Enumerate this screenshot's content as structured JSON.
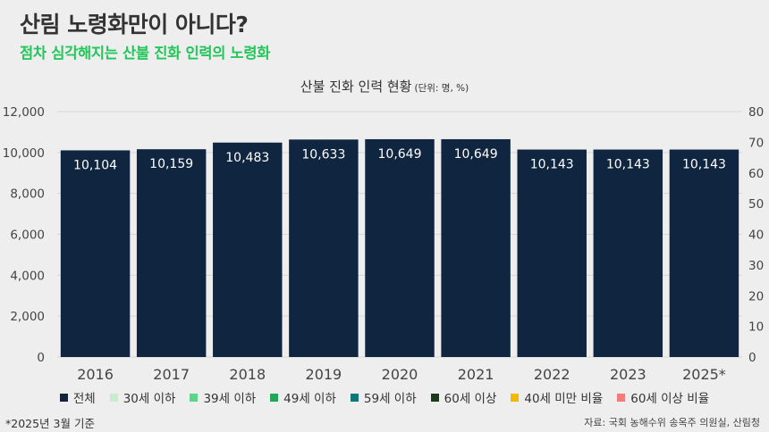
{
  "header": {
    "title": "산림 노령화만이 아니다?",
    "subtitle": "점차 심각해지는 산불 진화 인력의 노령화"
  },
  "colors": {
    "bar": "#0f2540",
    "subtitle_accent": "#22c65a"
  },
  "chart_data": {
    "type": "bar",
    "title": "산불 진화 인력 현황",
    "unit_note": "(단위: 명, %)",
    "categories": [
      "2016",
      "2017",
      "2018",
      "2019",
      "2020",
      "2021",
      "2022",
      "2023",
      "2025*"
    ],
    "series": [
      {
        "name": "전체",
        "color": "#0f2540",
        "values": [
          10104,
          10159,
          10483,
          10633,
          10649,
          10649,
          10143,
          10143,
          10143
        ]
      }
    ],
    "value_labels": [
      "10,104",
      "10,159",
      "10,483",
      "10,633",
      "10,649",
      "10,649",
      "10,143",
      "10,143",
      "10,143"
    ],
    "y_left": {
      "range": [
        0,
        12000
      ],
      "ticks": [
        "0",
        "2,000",
        "4,000",
        "6,000",
        "8,000",
        "10,000",
        "12,000"
      ]
    },
    "y_right": {
      "range": [
        0,
        80
      ],
      "ticks": [
        "0",
        "10",
        "20",
        "30",
        "40",
        "50",
        "60",
        "70",
        "80"
      ]
    },
    "grid": true,
    "legend_position": "bottom",
    "legend": [
      {
        "label": "전체",
        "color": "#0f2540"
      },
      {
        "label": "30세 이하",
        "color": "#c8eccd"
      },
      {
        "label": "39세 이하",
        "color": "#5fd38a"
      },
      {
        "label": "49세 이하",
        "color": "#22a65a"
      },
      {
        "label": "59세 이하",
        "color": "#0f7777"
      },
      {
        "label": "60세 이상",
        "color": "#1c3a1c"
      },
      {
        "label": "40세 미만 비율",
        "color": "#f5b800"
      },
      {
        "label": "60세 이상 비율",
        "color": "#f47c7c"
      }
    ]
  },
  "footer": {
    "footnote": "*2025년 3월 기준",
    "source": "자료: 국회 농해수위 송옥주 의원실, 산림청"
  }
}
